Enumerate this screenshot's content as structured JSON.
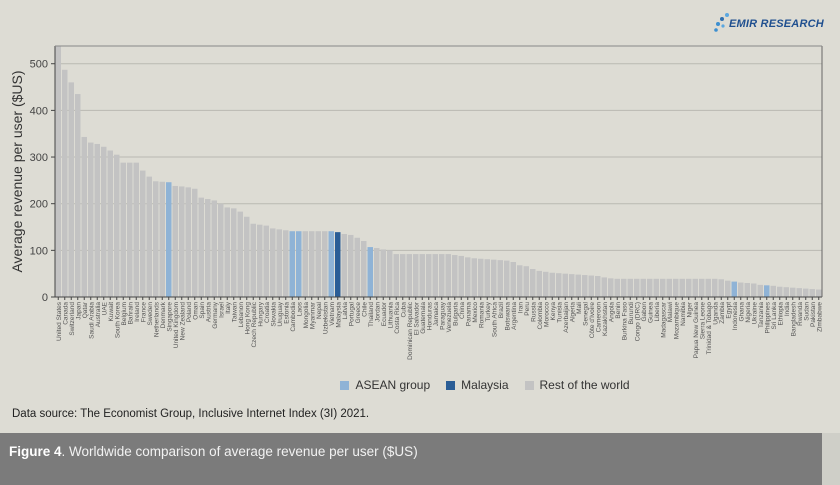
{
  "logo": {
    "text": "EMIR RESEARCH"
  },
  "legend": [
    {
      "label": "ASEAN group",
      "color": "#8fb3d6"
    },
    {
      "label": "Malaysia",
      "color": "#2a5d96"
    },
    {
      "label": "Rest of the world",
      "color": "#c3c3c3"
    }
  ],
  "source": {
    "label": "Data source:",
    "text": " The Economist Group, Inclusive Internet Index (3I) 2021."
  },
  "caption": {
    "figure": "Figure 4",
    "text": ". Worldwide comparison of average revenue per user ($US)"
  },
  "chart_data": {
    "type": "bar",
    "title": "",
    "xlabel": "",
    "ylabel": "Average revenue per user ($US)",
    "ylim": [
      0,
      538
    ],
    "yticks": [
      0,
      100,
      200,
      300,
      400,
      500
    ],
    "grid": true,
    "legend_position": "bottom",
    "categories": [
      "United States",
      "Canada",
      "Switzerland",
      "Japan",
      "Qatar",
      "Saudi Arabia",
      "Australia",
      "UAE",
      "Kuwait",
      "South Korea",
      "Belgium",
      "Bahrain",
      "Ireland",
      "France",
      "Sweden",
      "Netherlands",
      "Denmark",
      "Singapore",
      "United Kingdom",
      "New Zealand",
      "Poland",
      "Oman",
      "Spain",
      "Austria",
      "Germany",
      "Israel",
      "Italy",
      "Taiwan",
      "Lebanon",
      "Hong Kong",
      "Czech Republic",
      "Hungary",
      "Croatia",
      "Slovakia",
      "Uruguay",
      "Estonia",
      "Cambodia",
      "Laos",
      "Mongolia",
      "Myanmar",
      "Nepal",
      "Uzbekistan",
      "Vietnam",
      "Malaysia",
      "Latvia",
      "Portugal",
      "Greece",
      "Chile",
      "Thailand",
      "Jordan",
      "Ecuador",
      "Lithuania",
      "Costa Rica",
      "Cuba",
      "Dominican Republic",
      "El Salvador",
      "Guatemala",
      "Honduras",
      "Jamaica",
      "Paraguay",
      "Venezuela",
      "Bulgaria",
      "China",
      "Panama",
      "Mexico",
      "Romania",
      "Turkey",
      "South Africa",
      "Brazil",
      "Botswana",
      "Argentina",
      "Iran",
      "Peru",
      "Russia",
      "Colombia",
      "Morocco",
      "Kenya",
      "Tunisia",
      "Azerbaijan",
      "Algeria",
      "Mali",
      "Senegal",
      "Côte d'Ivoire",
      "Cameroon",
      "Kazakhstan",
      "Angola",
      "Benin",
      "Burkina Faso",
      "Burundi",
      "Congo (DRC)",
      "Gabon",
      "Guinea",
      "Liberia",
      "Madagascar",
      "Malawi",
      "Mozambique",
      "Namibia",
      "Niger",
      "Papua New Guinea",
      "Sierra Leone",
      "Trinidad & Tobago",
      "Uganda",
      "Zambia",
      "Egypt",
      "Indonesia",
      "Ghana",
      "Nigeria",
      "Ukraine",
      "Tanzania",
      "Philippines",
      "Sri Lanka",
      "Ethiopia",
      "India",
      "Bangladesh",
      "Rwanda",
      "Sudan",
      "Pakistan",
      "Zimbabwe"
    ],
    "values": [
      540,
      487,
      460,
      435,
      343,
      331,
      328,
      322,
      314,
      305,
      288,
      288,
      288,
      271,
      258,
      248,
      247,
      246,
      238,
      237,
      235,
      232,
      213,
      210,
      207,
      200,
      192,
      190,
      183,
      172,
      157,
      155,
      153,
      147,
      145,
      143,
      141,
      141,
      141,
      141,
      141,
      141,
      141,
      139,
      135,
      133,
      127,
      120,
      107,
      105,
      102,
      100,
      92,
      92,
      92,
      92,
      92,
      92,
      92,
      92,
      92,
      90,
      88,
      85,
      83,
      82,
      81,
      80,
      79,
      78,
      75,
      68,
      66,
      60,
      56,
      54,
      52,
      51,
      50,
      49,
      48,
      47,
      46,
      45,
      42,
      40,
      39,
      39,
      39,
      39,
      39,
      39,
      39,
      39,
      39,
      39,
      39,
      39,
      39,
      39,
      39,
      39,
      38,
      35,
      33,
      31,
      30,
      29,
      26,
      25,
      24,
      22,
      21,
      20,
      19,
      18,
      17,
      16
    ],
    "groups": {
      "ASEAN group": [
        "Singapore",
        "Cambodia",
        "Laos",
        "Vietnam",
        "Thailand",
        "Indonesia",
        "Philippines"
      ],
      "Malaysia": [
        "Malaysia"
      ]
    }
  }
}
